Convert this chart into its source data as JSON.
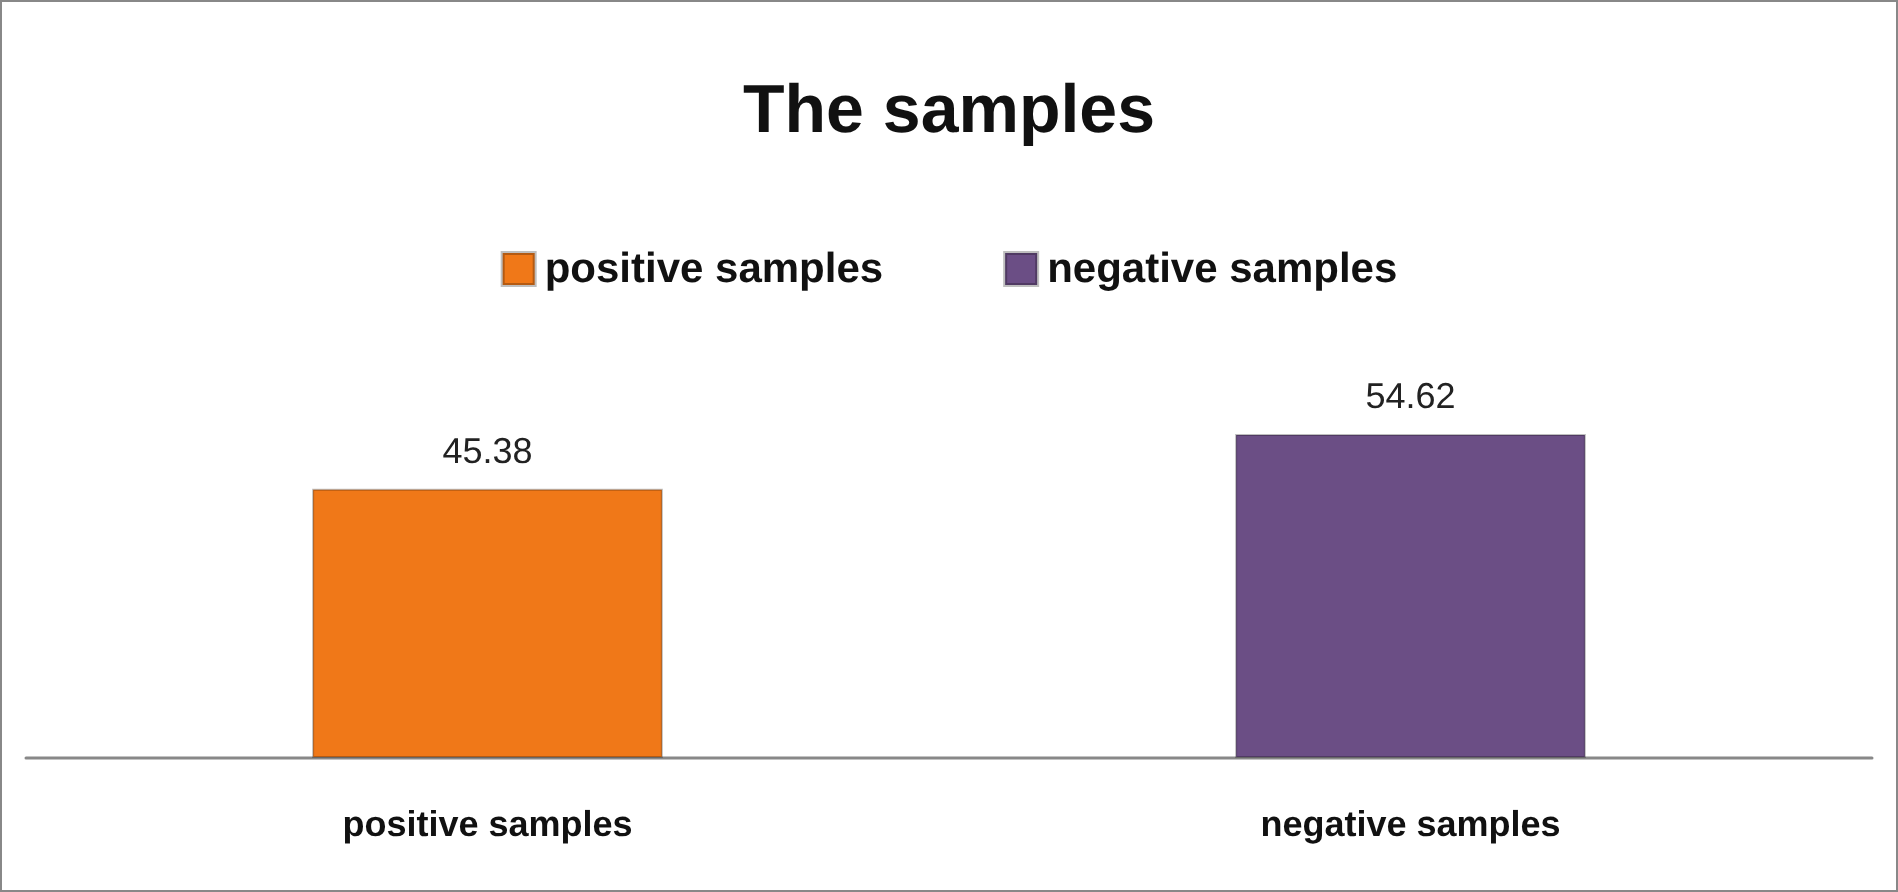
{
  "chart_data": {
    "type": "bar",
    "title": "The samples",
    "categories": [
      "positive samples",
      "negative samples"
    ],
    "series": [
      {
        "name": "positive samples",
        "color": "#f07818",
        "values": [
          45.38,
          null
        ]
      },
      {
        "name": "negative samples",
        "color": "#6b4e85",
        "values": [
          null,
          54.62
        ]
      }
    ],
    "data_labels": true,
    "legend": "top"
  }
}
